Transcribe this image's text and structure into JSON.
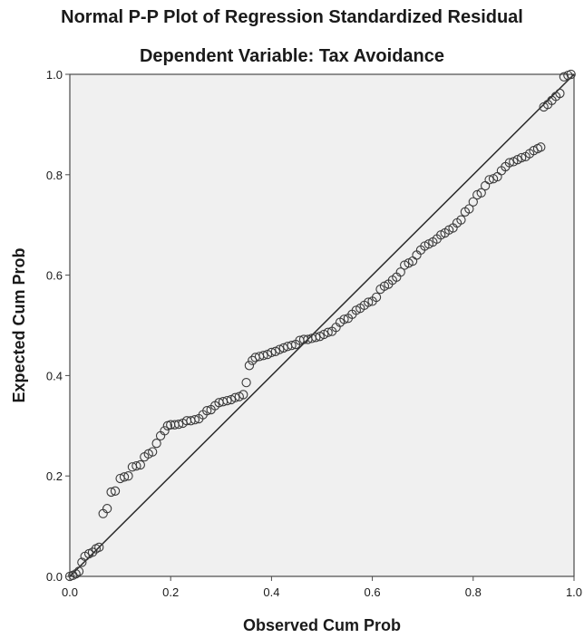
{
  "chart_data": {
    "type": "scatter",
    "title": "Normal P-P Plot of Regression Standardized Residual",
    "subtitle": "Dependent Variable: Tax Avoidance",
    "xlabel": "Observed Cum Prob",
    "ylabel": "Expected Cum Prob",
    "xlim": [
      0.0,
      1.0
    ],
    "ylim": [
      0.0,
      1.0
    ],
    "xticks": [
      "0.0",
      "0.2",
      "0.4",
      "0.6",
      "0.8",
      "1.0"
    ],
    "yticks": [
      "0.0",
      "0.2",
      "0.4",
      "0.6",
      "0.8",
      "1.0"
    ],
    "reference_line": [
      [
        0.0,
        0.0
      ],
      [
        1.0,
        1.0
      ]
    ],
    "grid": false,
    "colors": {
      "plot_background": "#f0f0f0",
      "marker_stroke": "#3a3a3a",
      "line": "#2a2a2a"
    },
    "points": [
      [
        0.0,
        0.0
      ],
      [
        0.006,
        0.002
      ],
      [
        0.012,
        0.005
      ],
      [
        0.018,
        0.01
      ],
      [
        0.024,
        0.028
      ],
      [
        0.03,
        0.04
      ],
      [
        0.038,
        0.045
      ],
      [
        0.045,
        0.048
      ],
      [
        0.052,
        0.055
      ],
      [
        0.058,
        0.058
      ],
      [
        0.066,
        0.125
      ],
      [
        0.074,
        0.135
      ],
      [
        0.082,
        0.168
      ],
      [
        0.09,
        0.17
      ],
      [
        0.1,
        0.195
      ],
      [
        0.108,
        0.198
      ],
      [
        0.116,
        0.2
      ],
      [
        0.124,
        0.218
      ],
      [
        0.132,
        0.22
      ],
      [
        0.14,
        0.222
      ],
      [
        0.148,
        0.238
      ],
      [
        0.156,
        0.244
      ],
      [
        0.164,
        0.248
      ],
      [
        0.172,
        0.265
      ],
      [
        0.18,
        0.28
      ],
      [
        0.188,
        0.29
      ],
      [
        0.194,
        0.3
      ],
      [
        0.2,
        0.302
      ],
      [
        0.208,
        0.302
      ],
      [
        0.216,
        0.303
      ],
      [
        0.224,
        0.305
      ],
      [
        0.232,
        0.31
      ],
      [
        0.24,
        0.31
      ],
      [
        0.248,
        0.312
      ],
      [
        0.256,
        0.314
      ],
      [
        0.264,
        0.322
      ],
      [
        0.272,
        0.33
      ],
      [
        0.28,
        0.332
      ],
      [
        0.288,
        0.34
      ],
      [
        0.296,
        0.346
      ],
      [
        0.304,
        0.348
      ],
      [
        0.312,
        0.35
      ],
      [
        0.32,
        0.352
      ],
      [
        0.328,
        0.356
      ],
      [
        0.336,
        0.358
      ],
      [
        0.344,
        0.362
      ],
      [
        0.35,
        0.386
      ],
      [
        0.356,
        0.42
      ],
      [
        0.362,
        0.43
      ],
      [
        0.368,
        0.436
      ],
      [
        0.376,
        0.438
      ],
      [
        0.384,
        0.44
      ],
      [
        0.392,
        0.442
      ],
      [
        0.4,
        0.446
      ],
      [
        0.408,
        0.448
      ],
      [
        0.416,
        0.452
      ],
      [
        0.424,
        0.455
      ],
      [
        0.432,
        0.458
      ],
      [
        0.44,
        0.46
      ],
      [
        0.448,
        0.462
      ],
      [
        0.456,
        0.47
      ],
      [
        0.464,
        0.472
      ],
      [
        0.472,
        0.472
      ],
      [
        0.48,
        0.474
      ],
      [
        0.488,
        0.476
      ],
      [
        0.496,
        0.478
      ],
      [
        0.504,
        0.482
      ],
      [
        0.512,
        0.486
      ],
      [
        0.52,
        0.488
      ],
      [
        0.528,
        0.496
      ],
      [
        0.536,
        0.506
      ],
      [
        0.544,
        0.512
      ],
      [
        0.552,
        0.514
      ],
      [
        0.56,
        0.522
      ],
      [
        0.568,
        0.53
      ],
      [
        0.576,
        0.534
      ],
      [
        0.584,
        0.54
      ],
      [
        0.592,
        0.546
      ],
      [
        0.6,
        0.548
      ],
      [
        0.608,
        0.556
      ],
      [
        0.616,
        0.572
      ],
      [
        0.624,
        0.578
      ],
      [
        0.632,
        0.582
      ],
      [
        0.64,
        0.59
      ],
      [
        0.648,
        0.596
      ],
      [
        0.656,
        0.606
      ],
      [
        0.664,
        0.62
      ],
      [
        0.672,
        0.624
      ],
      [
        0.68,
        0.628
      ],
      [
        0.688,
        0.64
      ],
      [
        0.696,
        0.65
      ],
      [
        0.704,
        0.658
      ],
      [
        0.712,
        0.662
      ],
      [
        0.72,
        0.666
      ],
      [
        0.728,
        0.672
      ],
      [
        0.736,
        0.68
      ],
      [
        0.744,
        0.684
      ],
      [
        0.752,
        0.69
      ],
      [
        0.76,
        0.694
      ],
      [
        0.768,
        0.704
      ],
      [
        0.776,
        0.71
      ],
      [
        0.784,
        0.726
      ],
      [
        0.792,
        0.732
      ],
      [
        0.8,
        0.746
      ],
      [
        0.808,
        0.76
      ],
      [
        0.816,
        0.764
      ],
      [
        0.824,
        0.778
      ],
      [
        0.832,
        0.79
      ],
      [
        0.84,
        0.792
      ],
      [
        0.848,
        0.796
      ],
      [
        0.856,
        0.808
      ],
      [
        0.864,
        0.816
      ],
      [
        0.872,
        0.824
      ],
      [
        0.88,
        0.826
      ],
      [
        0.888,
        0.83
      ],
      [
        0.896,
        0.834
      ],
      [
        0.904,
        0.836
      ],
      [
        0.912,
        0.842
      ],
      [
        0.92,
        0.848
      ],
      [
        0.928,
        0.852
      ],
      [
        0.934,
        0.855
      ],
      [
        0.94,
        0.935
      ],
      [
        0.948,
        0.94
      ],
      [
        0.956,
        0.948
      ],
      [
        0.964,
        0.956
      ],
      [
        0.972,
        0.962
      ],
      [
        0.98,
        0.995
      ],
      [
        0.988,
        0.998
      ],
      [
        0.994,
        1.0
      ]
    ]
  }
}
